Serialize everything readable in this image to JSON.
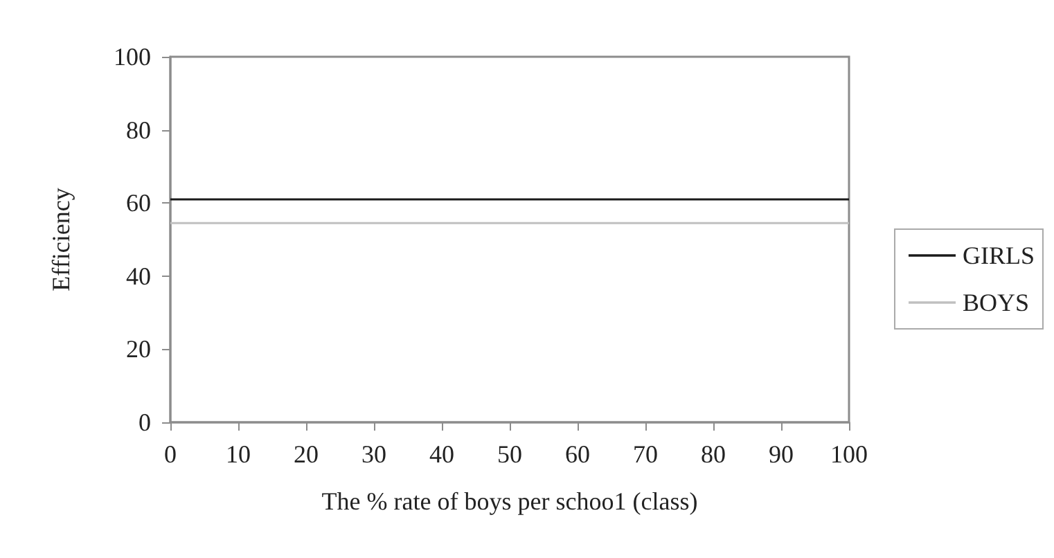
{
  "chart_data": {
    "type": "line",
    "xlabel": "The % rate of boys per schoo1 (class)",
    "ylabel": "Efficiency",
    "x": [
      0,
      100
    ],
    "series": [
      {
        "name": "GIRLS",
        "color": "#1a1a1a",
        "values": [
          61,
          61
        ]
      },
      {
        "name": "BOYS",
        "color": "#c0c0c0",
        "values": [
          54.5,
          54.5
        ]
      }
    ],
    "xlim": [
      0,
      100
    ],
    "xticks": [
      0,
      10,
      20,
      30,
      40,
      50,
      60,
      70,
      80,
      90,
      100
    ],
    "ylim": [
      0,
      100
    ],
    "yticks": [
      0,
      20,
      40,
      60,
      80,
      100
    ],
    "grid": false,
    "legend": "right",
    "marker": "none",
    "line_style": "solid"
  }
}
